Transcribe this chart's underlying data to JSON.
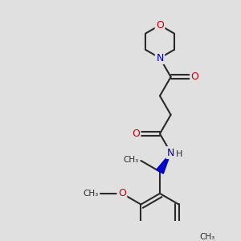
{
  "background_color": "#e0e0e0",
  "bond_color": "#2a2a2a",
  "nitrogen_color": "#0000cc",
  "oxygen_color": "#cc0000",
  "bond_width": 1.5,
  "figsize": [
    3.0,
    3.0
  ],
  "dpi": 100,
  "xlim": [
    0,
    10
  ],
  "ylim": [
    0,
    10
  ]
}
